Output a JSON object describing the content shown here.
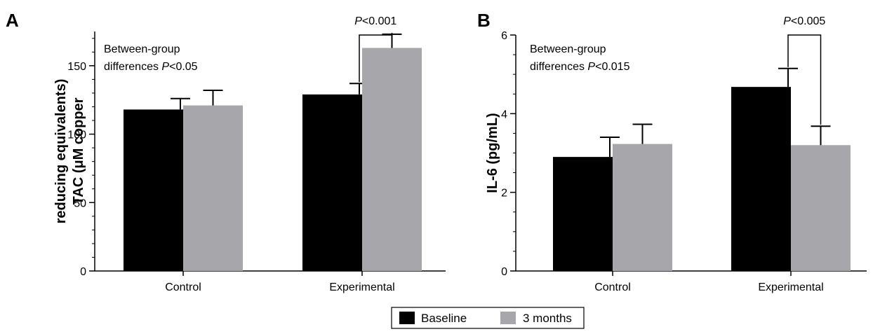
{
  "legend": {
    "items": [
      {
        "label": "Baseline",
        "color": "#000000"
      },
      {
        "label": "3 months",
        "color": "#a7a7ab"
      }
    ]
  },
  "chart_data": [
    {
      "type": "bar",
      "panel_label": "A",
      "categories": [
        "Control",
        "Experimental"
      ],
      "series": [
        {
          "name": "Baseline",
          "color": "#000000",
          "values": [
            118,
            129
          ],
          "errors": [
            8,
            8
          ]
        },
        {
          "name": "3 months",
          "color": "#a7a7ab",
          "values": [
            121,
            163
          ],
          "errors": [
            11,
            10
          ]
        }
      ],
      "ylabel_lines": [
        "TAC (μM copper",
        "reducing equivalents)"
      ],
      "ylim": [
        0,
        175
      ],
      "yticks": [
        0,
        50,
        100,
        150
      ],
      "ytick_labels": [
        "0",
        "50",
        "100",
        "150"
      ],
      "minor_tick_step": 10,
      "annotation": {
        "line1": "Between-group",
        "line2_prefix": "differences ",
        "p_italic": "P",
        "p_rest": "<0.05"
      },
      "significance": {
        "category_index": 1,
        "p_italic": "P",
        "p_rest": "<0.001"
      }
    },
    {
      "type": "bar",
      "panel_label": "B",
      "categories": [
        "Control",
        "Experimental"
      ],
      "series": [
        {
          "name": "Baseline",
          "color": "#000000",
          "values": [
            2.9,
            4.68
          ],
          "errors": [
            0.5,
            0.47
          ]
        },
        {
          "name": "3 months",
          "color": "#a7a7ab",
          "values": [
            3.23,
            3.2
          ],
          "errors": [
            0.5,
            0.48
          ]
        }
      ],
      "ylabel_lines": [
        "IL-6 (pg/mL)"
      ],
      "ylim": [
        0,
        6
      ],
      "yticks": [
        0,
        2,
        4,
        6
      ],
      "ytick_labels": [
        "0",
        "2",
        "4",
        "6"
      ],
      "minor_tick_step": 0.5,
      "annotation": {
        "line1": "Between-group",
        "line2_prefix": "differences ",
        "p_italic": "P",
        "p_rest": "<0.015"
      },
      "significance": {
        "category_index": 1,
        "p_italic": "P",
        "p_rest": "<0.005"
      }
    }
  ]
}
